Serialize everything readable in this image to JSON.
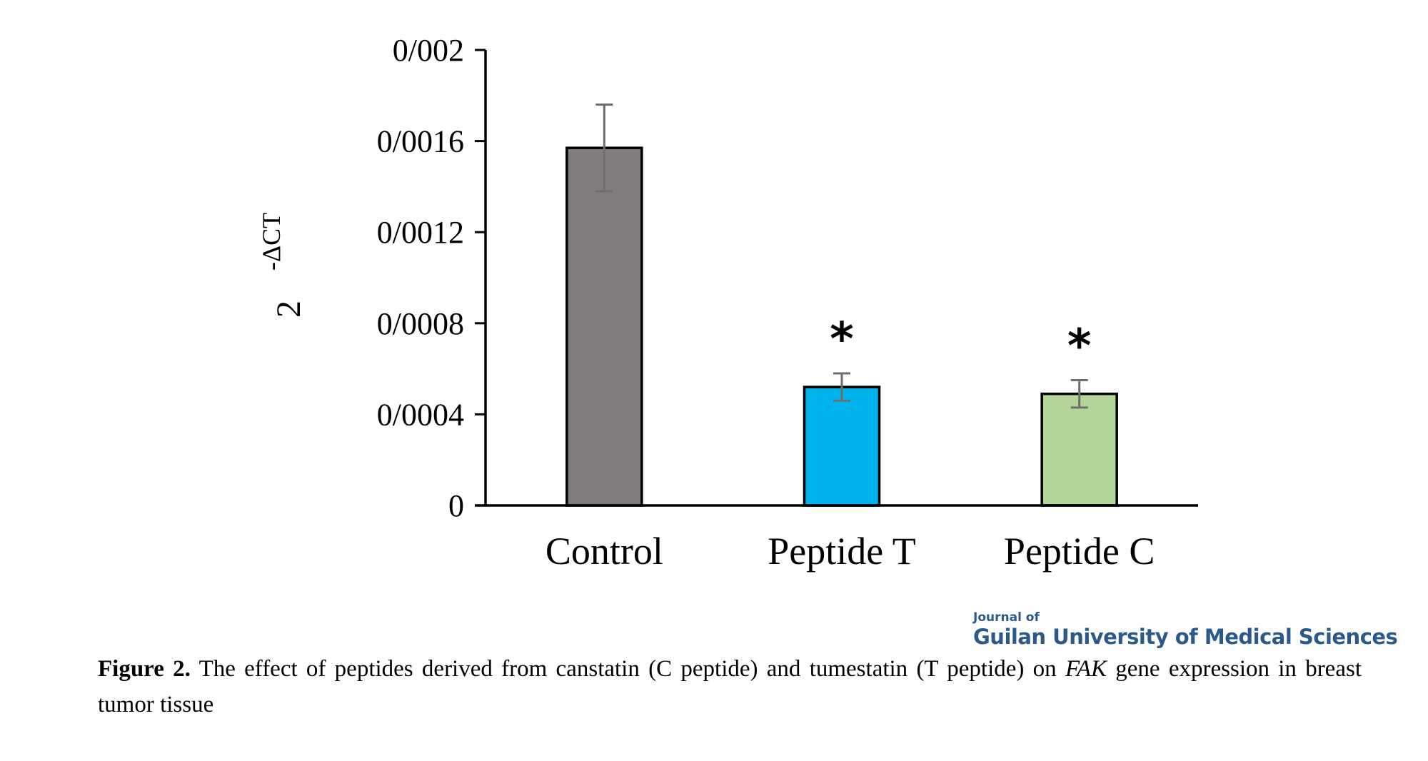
{
  "chart_data": {
    "type": "bar",
    "title": "",
    "xlabel": "",
    "ylabel": "2 -ΔCT",
    "ylabel_base": "2",
    "ylabel_exponent": "-ΔCT",
    "ylim": [
      0,
      0.002
    ],
    "yticks": [
      0,
      0.0004,
      0.0008,
      0.0012,
      0.0016,
      0.002
    ],
    "ytick_labels": [
      "0",
      "0/0004",
      "0/0008",
      "0/0012",
      "0/0016",
      "0/002"
    ],
    "grid": false,
    "legend": "none",
    "categories": [
      "Control",
      "Peptide T",
      "Peptide C"
    ],
    "values": [
      0.00157,
      0.00052,
      0.00049
    ],
    "error_low": [
      0.00138,
      0.00046,
      0.00043
    ],
    "error_high": [
      0.00176,
      0.00058,
      0.00055
    ],
    "colors": [
      "#7f7c7b",
      "#00b5ee",
      "#b3d69a"
    ],
    "error_color": "#6e6e6e",
    "annotations": [
      "",
      "*",
      "*"
    ]
  },
  "journal": {
    "line1": "Journal of",
    "line2": "Guilan University of Medical Sciences"
  },
  "caption": {
    "label": "Figure 2.",
    "text_before": " The effect of peptides derived from canstatin (C peptide) and tumestatin (T peptide) on ",
    "gene": "FAK",
    "text_after": " gene expression in breast tumor tissue"
  }
}
